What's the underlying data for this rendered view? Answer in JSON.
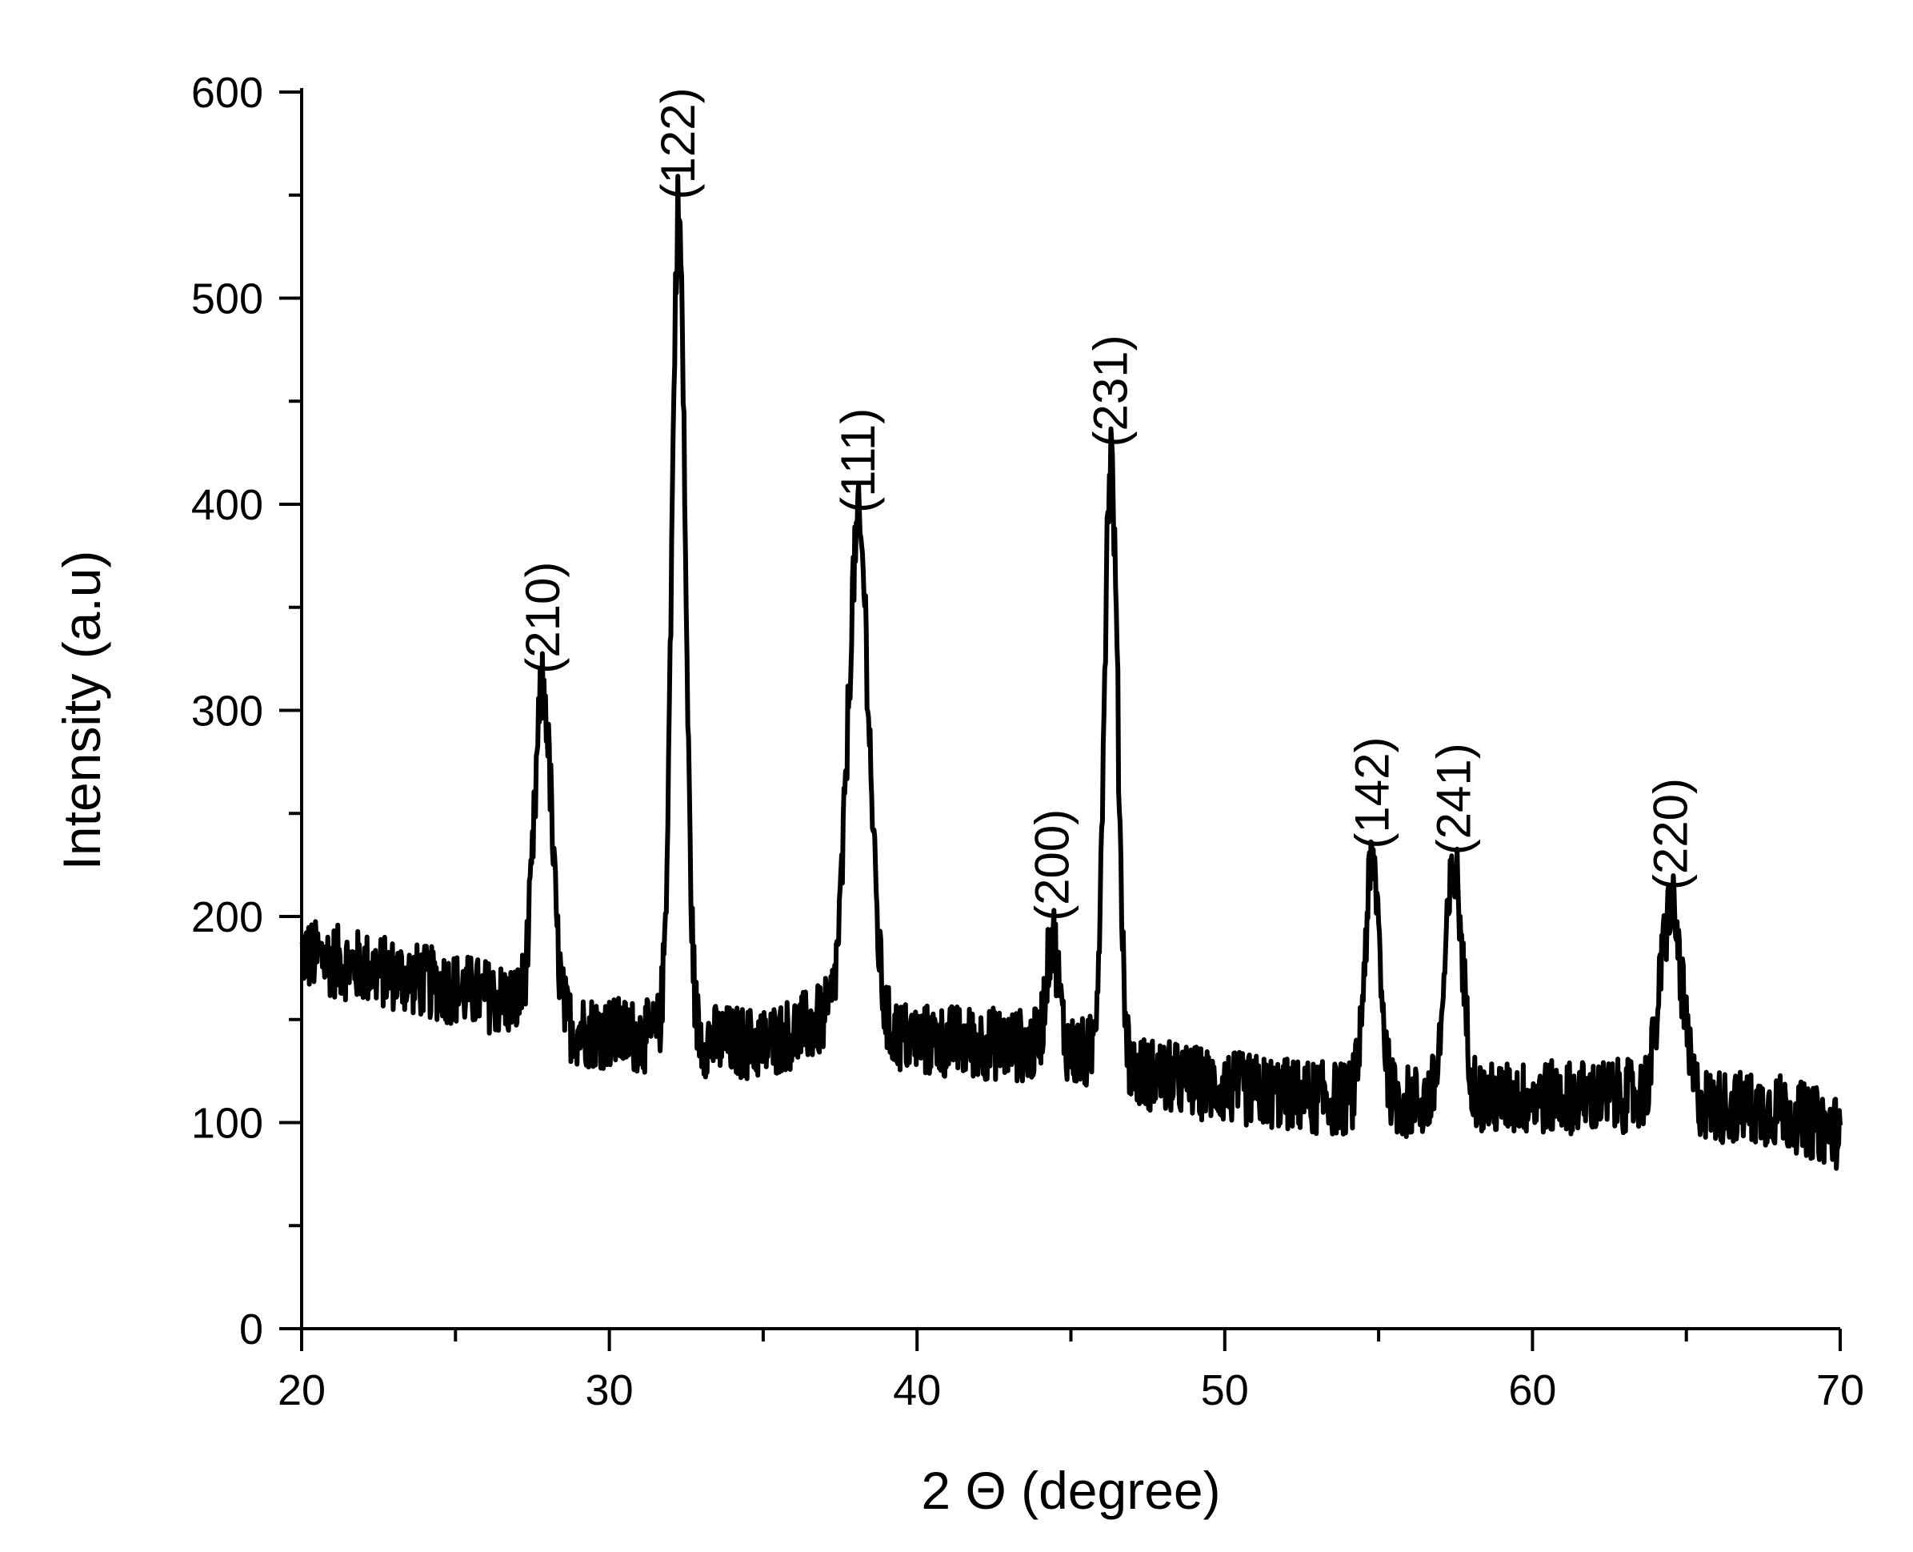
{
  "chart_data": {
    "type": "line",
    "title": "",
    "xlabel": "2 Θ (degree)",
    "ylabel": "Intensity (a.u)",
    "xlim": [
      20,
      70
    ],
    "ylim": [
      0,
      600
    ],
    "x_ticks": [
      20,
      30,
      40,
      50,
      60,
      70
    ],
    "y_ticks": [
      0,
      100,
      200,
      300,
      400,
      500,
      600
    ],
    "x_tick_labels": [
      "20",
      "30",
      "40",
      "50",
      "60",
      "70"
    ],
    "y_tick_labels": [
      "0",
      "100",
      "200",
      "300",
      "400",
      "500",
      "600"
    ],
    "grid": false,
    "legend": "none",
    "line_color": "#000000",
    "baseline_points": [
      [
        20,
        182
      ],
      [
        25,
        165
      ],
      [
        27,
        158
      ],
      [
        29,
        145
      ],
      [
        31,
        142
      ],
      [
        33,
        140
      ],
      [
        35,
        138
      ],
      [
        37,
        150
      ],
      [
        40,
        140
      ],
      [
        43,
        138
      ],
      [
        45,
        135
      ],
      [
        47,
        125
      ],
      [
        50,
        117
      ],
      [
        53,
        112
      ],
      [
        56,
        110
      ],
      [
        60,
        112
      ],
      [
        63,
        113
      ],
      [
        66,
        108
      ],
      [
        68,
        106
      ],
      [
        70,
        95
      ]
    ],
    "noise_amplitude": 18,
    "peaks": [
      {
        "x": 27.85,
        "intensity": 310,
        "width": 0.28,
        "label": "(210)"
      },
      {
        "x": 32.25,
        "intensity": 540,
        "width": 0.22,
        "label": "(122)"
      },
      {
        "x": 38.1,
        "intensity": 388,
        "width": 0.35,
        "label": "(111)"
      },
      {
        "x": 44.4,
        "intensity": 190,
        "width": 0.2,
        "label": "(200)"
      },
      {
        "x": 46.3,
        "intensity": 420,
        "width": 0.22,
        "label": "(231)"
      },
      {
        "x": 54.8,
        "intensity": 225,
        "width": 0.25,
        "label": "(142)"
      },
      {
        "x": 57.45,
        "intensity": 222,
        "width": 0.28,
        "label": "(241)"
      },
      {
        "x": 64.5,
        "intensity": 205,
        "width": 0.35,
        "label": "(220)"
      }
    ]
  }
}
